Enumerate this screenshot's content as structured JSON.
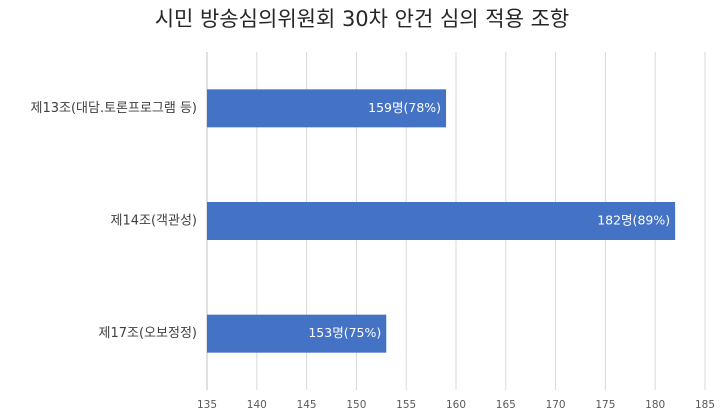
{
  "chart_data": {
    "type": "bar",
    "orientation": "horizontal",
    "title": "시민 방송심의위원회 30차 안건 심의 적용 조항",
    "categories": [
      "제13조(대담.토론프로그램 등)",
      "제14조(객관성)",
      "제17조(오보정정)"
    ],
    "values": [
      159,
      182,
      153
    ],
    "value_labels": [
      "159명(78%)",
      "182명(89%)",
      "153명(75%)"
    ],
    "color": "#4472c4",
    "xlim": [
      135,
      185
    ],
    "xticks": [
      135,
      140,
      145,
      150,
      155,
      160,
      165,
      170,
      175,
      180,
      185
    ],
    "grid": true
  }
}
